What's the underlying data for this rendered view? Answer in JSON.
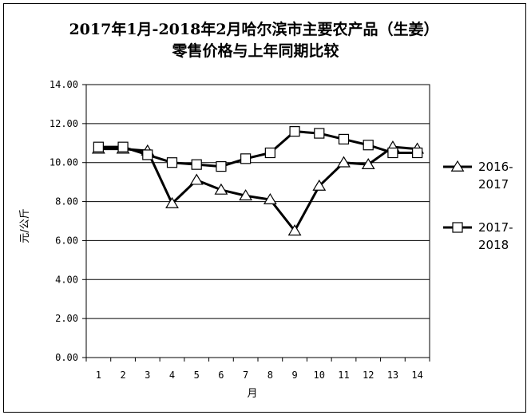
{
  "chart_data": {
    "type": "line",
    "title": "2017年1月-2018年2月哈尔滨市主要农产品（生姜）",
    "subtitle": "零售价格与上年同期比较",
    "xlabel": "月",
    "ylabel": "元/公斤",
    "categories": [
      "1",
      "2",
      "3",
      "4",
      "5",
      "6",
      "7",
      "8",
      "9",
      "10",
      "11",
      "12",
      "13",
      "14"
    ],
    "ylim": [
      0,
      14
    ],
    "yticks": [
      "0.00",
      "2.00",
      "4.00",
      "6.00",
      "8.00",
      "10.00",
      "12.00",
      "14.00"
    ],
    "grid": true,
    "legend_position": "right",
    "series": [
      {
        "name": [
          "2016-",
          "2017"
        ],
        "marker": "triangle",
        "values": [
          10.7,
          10.7,
          10.6,
          7.9,
          9.1,
          8.6,
          8.3,
          8.1,
          6.5,
          8.8,
          10.0,
          9.9,
          10.8,
          10.7
        ]
      },
      {
        "name": [
          "2017-",
          "2018"
        ],
        "marker": "square",
        "values": [
          10.8,
          10.8,
          10.4,
          10.0,
          9.9,
          9.8,
          10.2,
          10.5,
          11.6,
          11.5,
          11.2,
          10.9,
          10.5,
          10.5
        ]
      }
    ]
  }
}
